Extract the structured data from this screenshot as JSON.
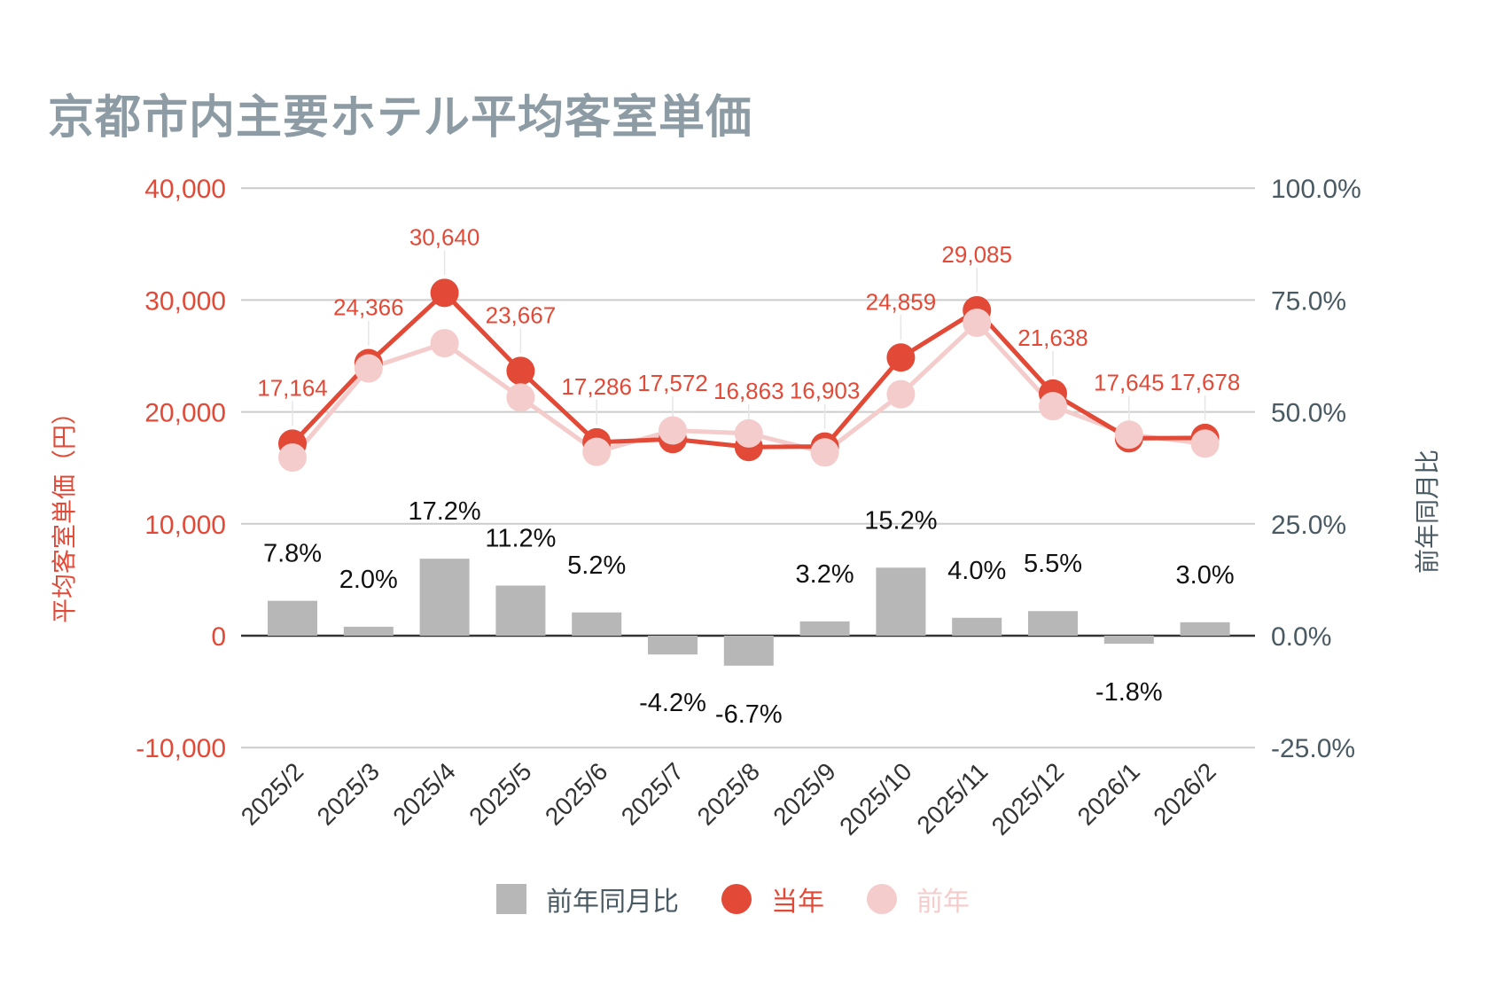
{
  "chart_data": {
    "type": "bar+line",
    "title": "京都市内主要ホテル平均客室単価",
    "categories": [
      "2025/2",
      "2025/3",
      "2025/4",
      "2025/5",
      "2025/6",
      "2025/7",
      "2025/8",
      "2025/9",
      "2025/10",
      "2025/11",
      "2025/12",
      "2026/1",
      "2026/2"
    ],
    "y_left": {
      "label": "平均客室単価（円）",
      "ylim": [
        -10000,
        40000
      ],
      "ticks": [
        "-10,000",
        "0",
        "10,000",
        "20,000",
        "30,000",
        "40,000"
      ],
      "tick_values": [
        -10000,
        0,
        10000,
        20000,
        30000,
        40000
      ]
    },
    "y_right": {
      "label": "前年同月比",
      "ylim": [
        -25,
        100
      ],
      "ticks": [
        "-25.0%",
        "0.0%",
        "25.0%",
        "50.0%",
        "75.0%",
        "100.0%"
      ]
    },
    "series": [
      {
        "name": "前年同月比",
        "type": "bar",
        "axis": "right",
        "color": "#b7b7b7",
        "values": [
          7.8,
          2.0,
          17.2,
          11.2,
          5.2,
          -4.2,
          -6.7,
          3.2,
          15.2,
          4.0,
          5.5,
          -1.8,
          3.0
        ],
        "labels": [
          "7.8%",
          "2.0%",
          "17.2%",
          "11.2%",
          "5.2%",
          "-4.2%",
          "-6.7%",
          "3.2%",
          "15.2%",
          "4.0%",
          "5.5%",
          "-1.8%",
          "3.0%"
        ]
      },
      {
        "name": "当年",
        "type": "line",
        "axis": "left",
        "color": "#e24a37",
        "values": [
          17164,
          24366,
          30640,
          23667,
          17286,
          17572,
          16863,
          16903,
          24859,
          29085,
          21638,
          17645,
          17678
        ],
        "labels": [
          "17,164",
          "24,366",
          "30,640",
          "23,667",
          "17,286",
          "17,572",
          "16,863",
          "16,903",
          "24,859",
          "29,085",
          "21,638",
          "17,645",
          "17,678"
        ]
      },
      {
        "name": "前年",
        "type": "line",
        "axis": "left",
        "color": "#f3cccb",
        "values": [
          15922,
          23888,
          26143,
          21283,
          16432,
          18342,
          18074,
          16379,
          21579,
          27966,
          20510,
          17968,
          17163
        ]
      }
    ],
    "legend_position": "bottom",
    "grid": true
  },
  "colors": {
    "title": "#8d9ca4",
    "left_axis": "#e24a37",
    "right_axis": "#4a5a63",
    "grid": "#cccccc"
  }
}
